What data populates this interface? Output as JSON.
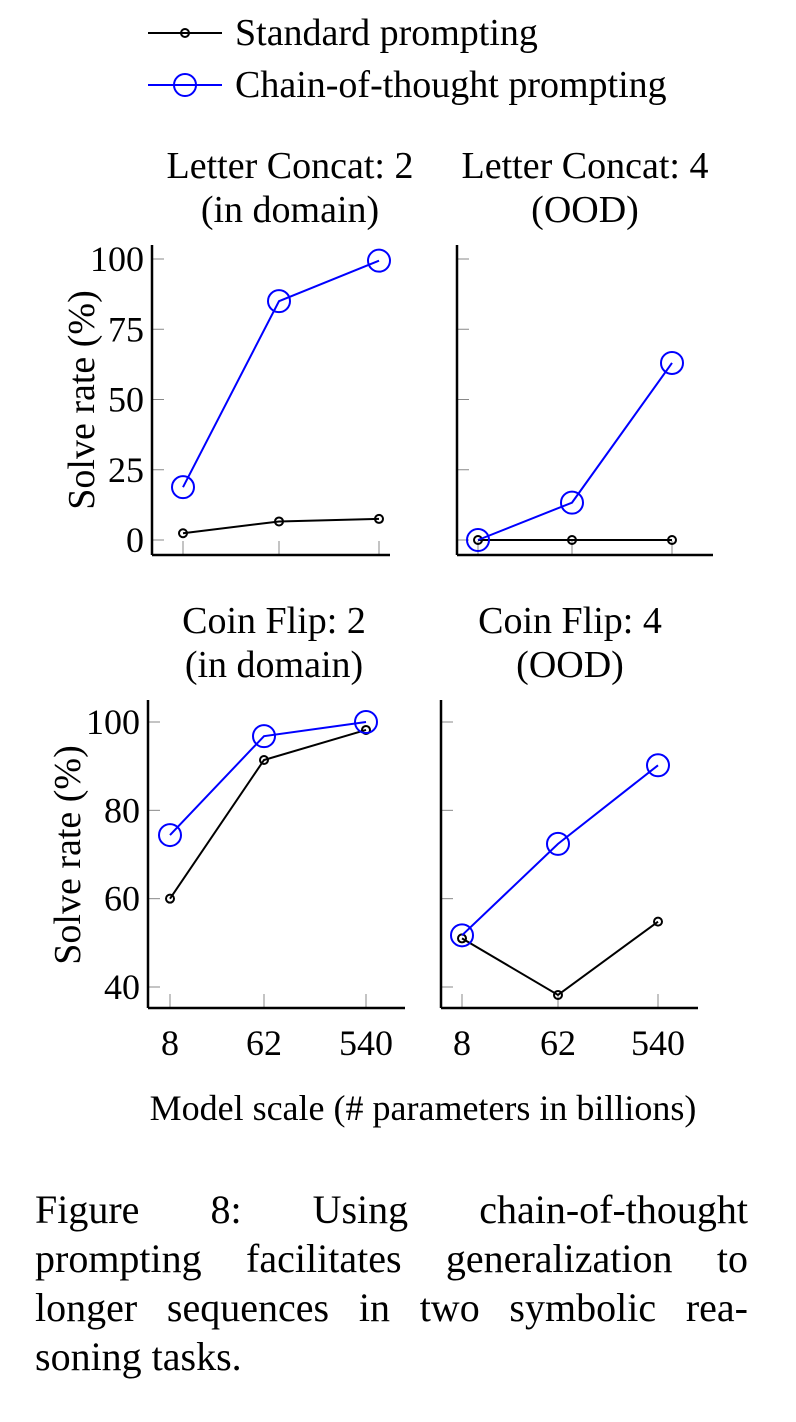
{
  "legend": [
    {
      "label": "Standard prompting",
      "color": "#000000",
      "marker": "small-circle"
    },
    {
      "label": "Chain-of-thought prompting",
      "color": "#0000ff",
      "marker": "large-circle"
    }
  ],
  "chart_data": [
    {
      "type": "line",
      "title": [
        "Letter Concat: 2",
        "(in domain)"
      ],
      "ylabel": "Solve rate (%)",
      "xlabel": "Model scale (# parameters in billions)",
      "x": [
        "8",
        "62",
        "540"
      ],
      "ylim": [
        -5,
        105
      ],
      "yticks": [
        "0",
        "25",
        "50",
        "75",
        "100"
      ],
      "ytick_values": [
        0,
        25,
        50,
        75,
        100
      ],
      "series": [
        {
          "name": "Standard prompting",
          "values": [
            2.4,
            6.6,
            7.5
          ]
        },
        {
          "name": "Chain-of-thought prompting",
          "values": [
            18.8,
            85.0,
            99.4
          ]
        }
      ]
    },
    {
      "type": "line",
      "title": [
        "Letter Concat: 4",
        "(OOD)"
      ],
      "x": [
        "8",
        "62",
        "540"
      ],
      "ylim": [
        -5,
        105
      ],
      "ytick_values": [
        0,
        25,
        50,
        75,
        100
      ],
      "series": [
        {
          "name": "Standard prompting",
          "values": [
            0.0,
            0.0,
            0.0
          ]
        },
        {
          "name": "Chain-of-thought prompting",
          "values": [
            0.0,
            13.3,
            63.0
          ]
        }
      ]
    },
    {
      "type": "line",
      "title": [
        "Coin Flip: 2",
        "(in domain)"
      ],
      "ylabel": "Solve rate (%)",
      "x": [
        "8",
        "62",
        "540"
      ],
      "ylim": [
        35,
        105
      ],
      "yticks": [
        "40",
        "60",
        "80",
        "100"
      ],
      "ytick_values": [
        40,
        60,
        80,
        100
      ],
      "series": [
        {
          "name": "Standard prompting",
          "values": [
            60.0,
            91.4,
            98.2
          ]
        },
        {
          "name": "Chain-of-thought prompting",
          "values": [
            74.4,
            96.8,
            100.0
          ]
        }
      ]
    },
    {
      "type": "line",
      "title": [
        "Coin Flip: 4",
        "(OOD)"
      ],
      "x": [
        "8",
        "62",
        "540"
      ],
      "ylim": [
        35,
        105
      ],
      "ytick_values": [
        40,
        60,
        80,
        100
      ],
      "series": [
        {
          "name": "Standard prompting",
          "values": [
            51.0,
            38.2,
            54.8
          ]
        },
        {
          "name": "Chain-of-thought prompting",
          "values": [
            51.7,
            72.4,
            90.2
          ]
        }
      ]
    }
  ],
  "xlabel": "Model scale (# parameters in billions)",
  "caption_lines": [
    "Figure 8:     Using chain-of-thought",
    "prompting facilitates generalization to",
    "longer sequences in two symbolic rea-",
    "soning tasks."
  ]
}
